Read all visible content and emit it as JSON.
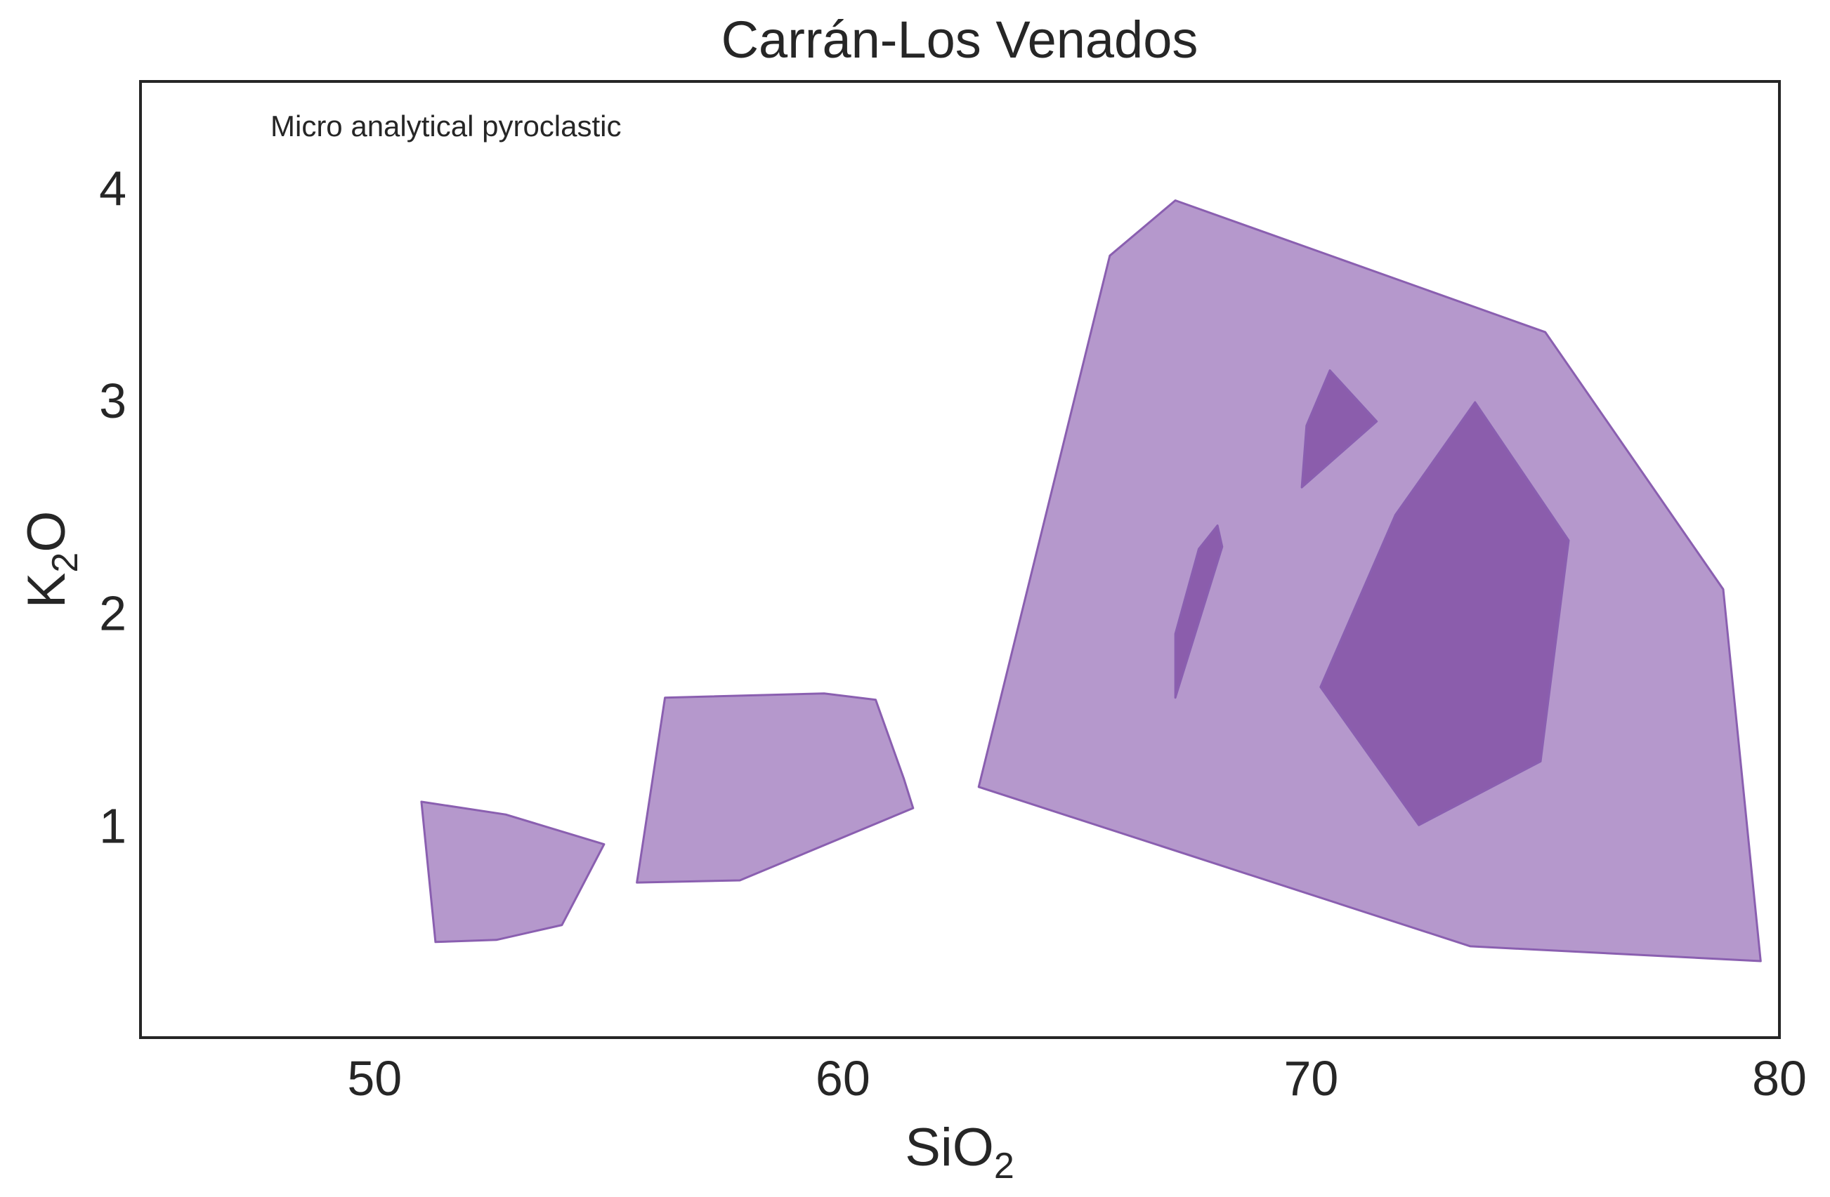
{
  "chart_data": {
    "type": "area",
    "title": "Carrán-Los Venados",
    "annotation": "Micro analytical pyroclastic",
    "xlabel": {
      "main": "SiO",
      "sub": "2"
    },
    "ylabel": {
      "main": "K",
      "sub": "2",
      "rest": "O"
    },
    "xlim": [
      45,
      80
    ],
    "ylim": [
      0,
      4.5
    ],
    "xticks": [
      50,
      60,
      70,
      80
    ],
    "yticks": [
      1,
      2,
      3,
      4
    ],
    "grid": false,
    "colors": {
      "outer_fill": "#b598cc",
      "inner_fill": "#8b5dac",
      "stroke": "#8a5fb0",
      "axis": "#262626"
    },
    "series": [
      {
        "level": "outer",
        "points": [
          [
            51.0,
            1.11
          ],
          [
            52.8,
            1.05
          ],
          [
            54.9,
            0.91
          ],
          [
            54.0,
            0.53
          ],
          [
            52.6,
            0.46
          ],
          [
            51.3,
            0.45
          ]
        ]
      },
      {
        "level": "outer",
        "points": [
          [
            56.2,
            1.6
          ],
          [
            59.6,
            1.62
          ],
          [
            60.7,
            1.59
          ],
          [
            61.3,
            1.22
          ],
          [
            61.5,
            1.08
          ],
          [
            57.8,
            0.74
          ],
          [
            55.6,
            0.73
          ]
        ]
      },
      {
        "level": "outer",
        "points": [
          [
            65.7,
            3.68
          ],
          [
            67.1,
            3.94
          ],
          [
            75.0,
            3.32
          ],
          [
            78.8,
            2.11
          ],
          [
            79.6,
            0.36
          ],
          [
            73.4,
            0.43
          ],
          [
            62.9,
            1.18
          ]
        ]
      },
      {
        "level": "inner",
        "points": [
          [
            70.4,
            3.14
          ],
          [
            71.4,
            2.9
          ],
          [
            69.8,
            2.59
          ],
          [
            69.9,
            2.88
          ]
        ]
      },
      {
        "level": "inner",
        "points": [
          [
            73.5,
            2.99
          ],
          [
            75.5,
            2.34
          ],
          [
            74.9,
            1.3
          ],
          [
            72.3,
            1.0
          ],
          [
            70.2,
            1.65
          ],
          [
            71.8,
            2.46
          ]
        ]
      },
      {
        "level": "inner",
        "points": [
          [
            68.0,
            2.41
          ],
          [
            68.1,
            2.31
          ],
          [
            67.1,
            1.6
          ],
          [
            67.1,
            1.9
          ],
          [
            67.6,
            2.3
          ]
        ]
      }
    ]
  }
}
